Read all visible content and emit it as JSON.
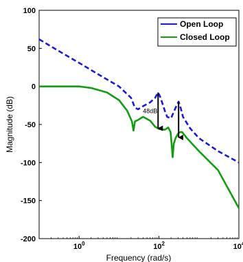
{
  "chart_data": {
    "type": "line",
    "xlabel": "Frequency (rad/s)",
    "ylabel": "Magnitude (dB)",
    "xscale": "log",
    "xlim": [
      0.1,
      10000
    ],
    "ylim": [
      -200,
      100
    ],
    "x_ticks": [
      {
        "value": 1,
        "base": "10",
        "exp": "0"
      },
      {
        "value": 100,
        "base": "10",
        "exp": "2"
      },
      {
        "value": 10000,
        "base": "10",
        "exp": "4"
      }
    ],
    "y_ticks": [
      100,
      50,
      0,
      -50,
      -100,
      -150,
      -200
    ],
    "grid": false,
    "legend_position": "top-right",
    "series": [
      {
        "name": "Open Loop",
        "color": "#1a1adb",
        "style": "dashed",
        "points": [
          [
            0.1,
            62
          ],
          [
            0.3,
            47
          ],
          [
            1,
            31
          ],
          [
            3,
            16
          ],
          [
            10,
            0
          ],
          [
            20,
            -15
          ],
          [
            25,
            -28
          ],
          [
            30,
            -30
          ],
          [
            40,
            -26
          ],
          [
            60,
            -21
          ],
          [
            80,
            -15
          ],
          [
            95,
            -8
          ],
          [
            110,
            -15
          ],
          [
            140,
            -32
          ],
          [
            160,
            -40
          ],
          [
            200,
            -42
          ],
          [
            260,
            -28
          ],
          [
            310,
            -20
          ],
          [
            340,
            -26
          ],
          [
            400,
            -40
          ],
          [
            600,
            -55
          ],
          [
            1000,
            -68
          ],
          [
            3000,
            -85
          ],
          [
            10000,
            -100
          ]
        ]
      },
      {
        "name": "Closed Loop",
        "color": "#119f11",
        "style": "solid",
        "points": [
          [
            0.1,
            0
          ],
          [
            1,
            0
          ],
          [
            2,
            -2
          ],
          [
            5,
            -8
          ],
          [
            10,
            -18
          ],
          [
            16,
            -32
          ],
          [
            21,
            -46
          ],
          [
            23,
            -58
          ],
          [
            25,
            -46
          ],
          [
            30,
            -44
          ],
          [
            40,
            -40
          ],
          [
            60,
            -45
          ],
          [
            80,
            -53
          ],
          [
            100,
            -56
          ],
          [
            140,
            -57
          ],
          [
            170,
            -54
          ],
          [
            195,
            -60
          ],
          [
            210,
            -80
          ],
          [
            220,
            -93
          ],
          [
            235,
            -75
          ],
          [
            260,
            -68
          ],
          [
            300,
            -62
          ],
          [
            340,
            -60
          ],
          [
            380,
            -60
          ],
          [
            500,
            -68
          ],
          [
            1000,
            -85
          ],
          [
            3000,
            -110
          ],
          [
            10000,
            -160
          ]
        ]
      }
    ],
    "annotations": [
      {
        "text": "48dB",
        "x": 60,
        "y": -35
      }
    ],
    "arrows": [
      {
        "x": 95,
        "y_from": -8,
        "y_to": -56
      },
      {
        "x": 310,
        "y_from": -20,
        "y_to": -68
      }
    ]
  }
}
